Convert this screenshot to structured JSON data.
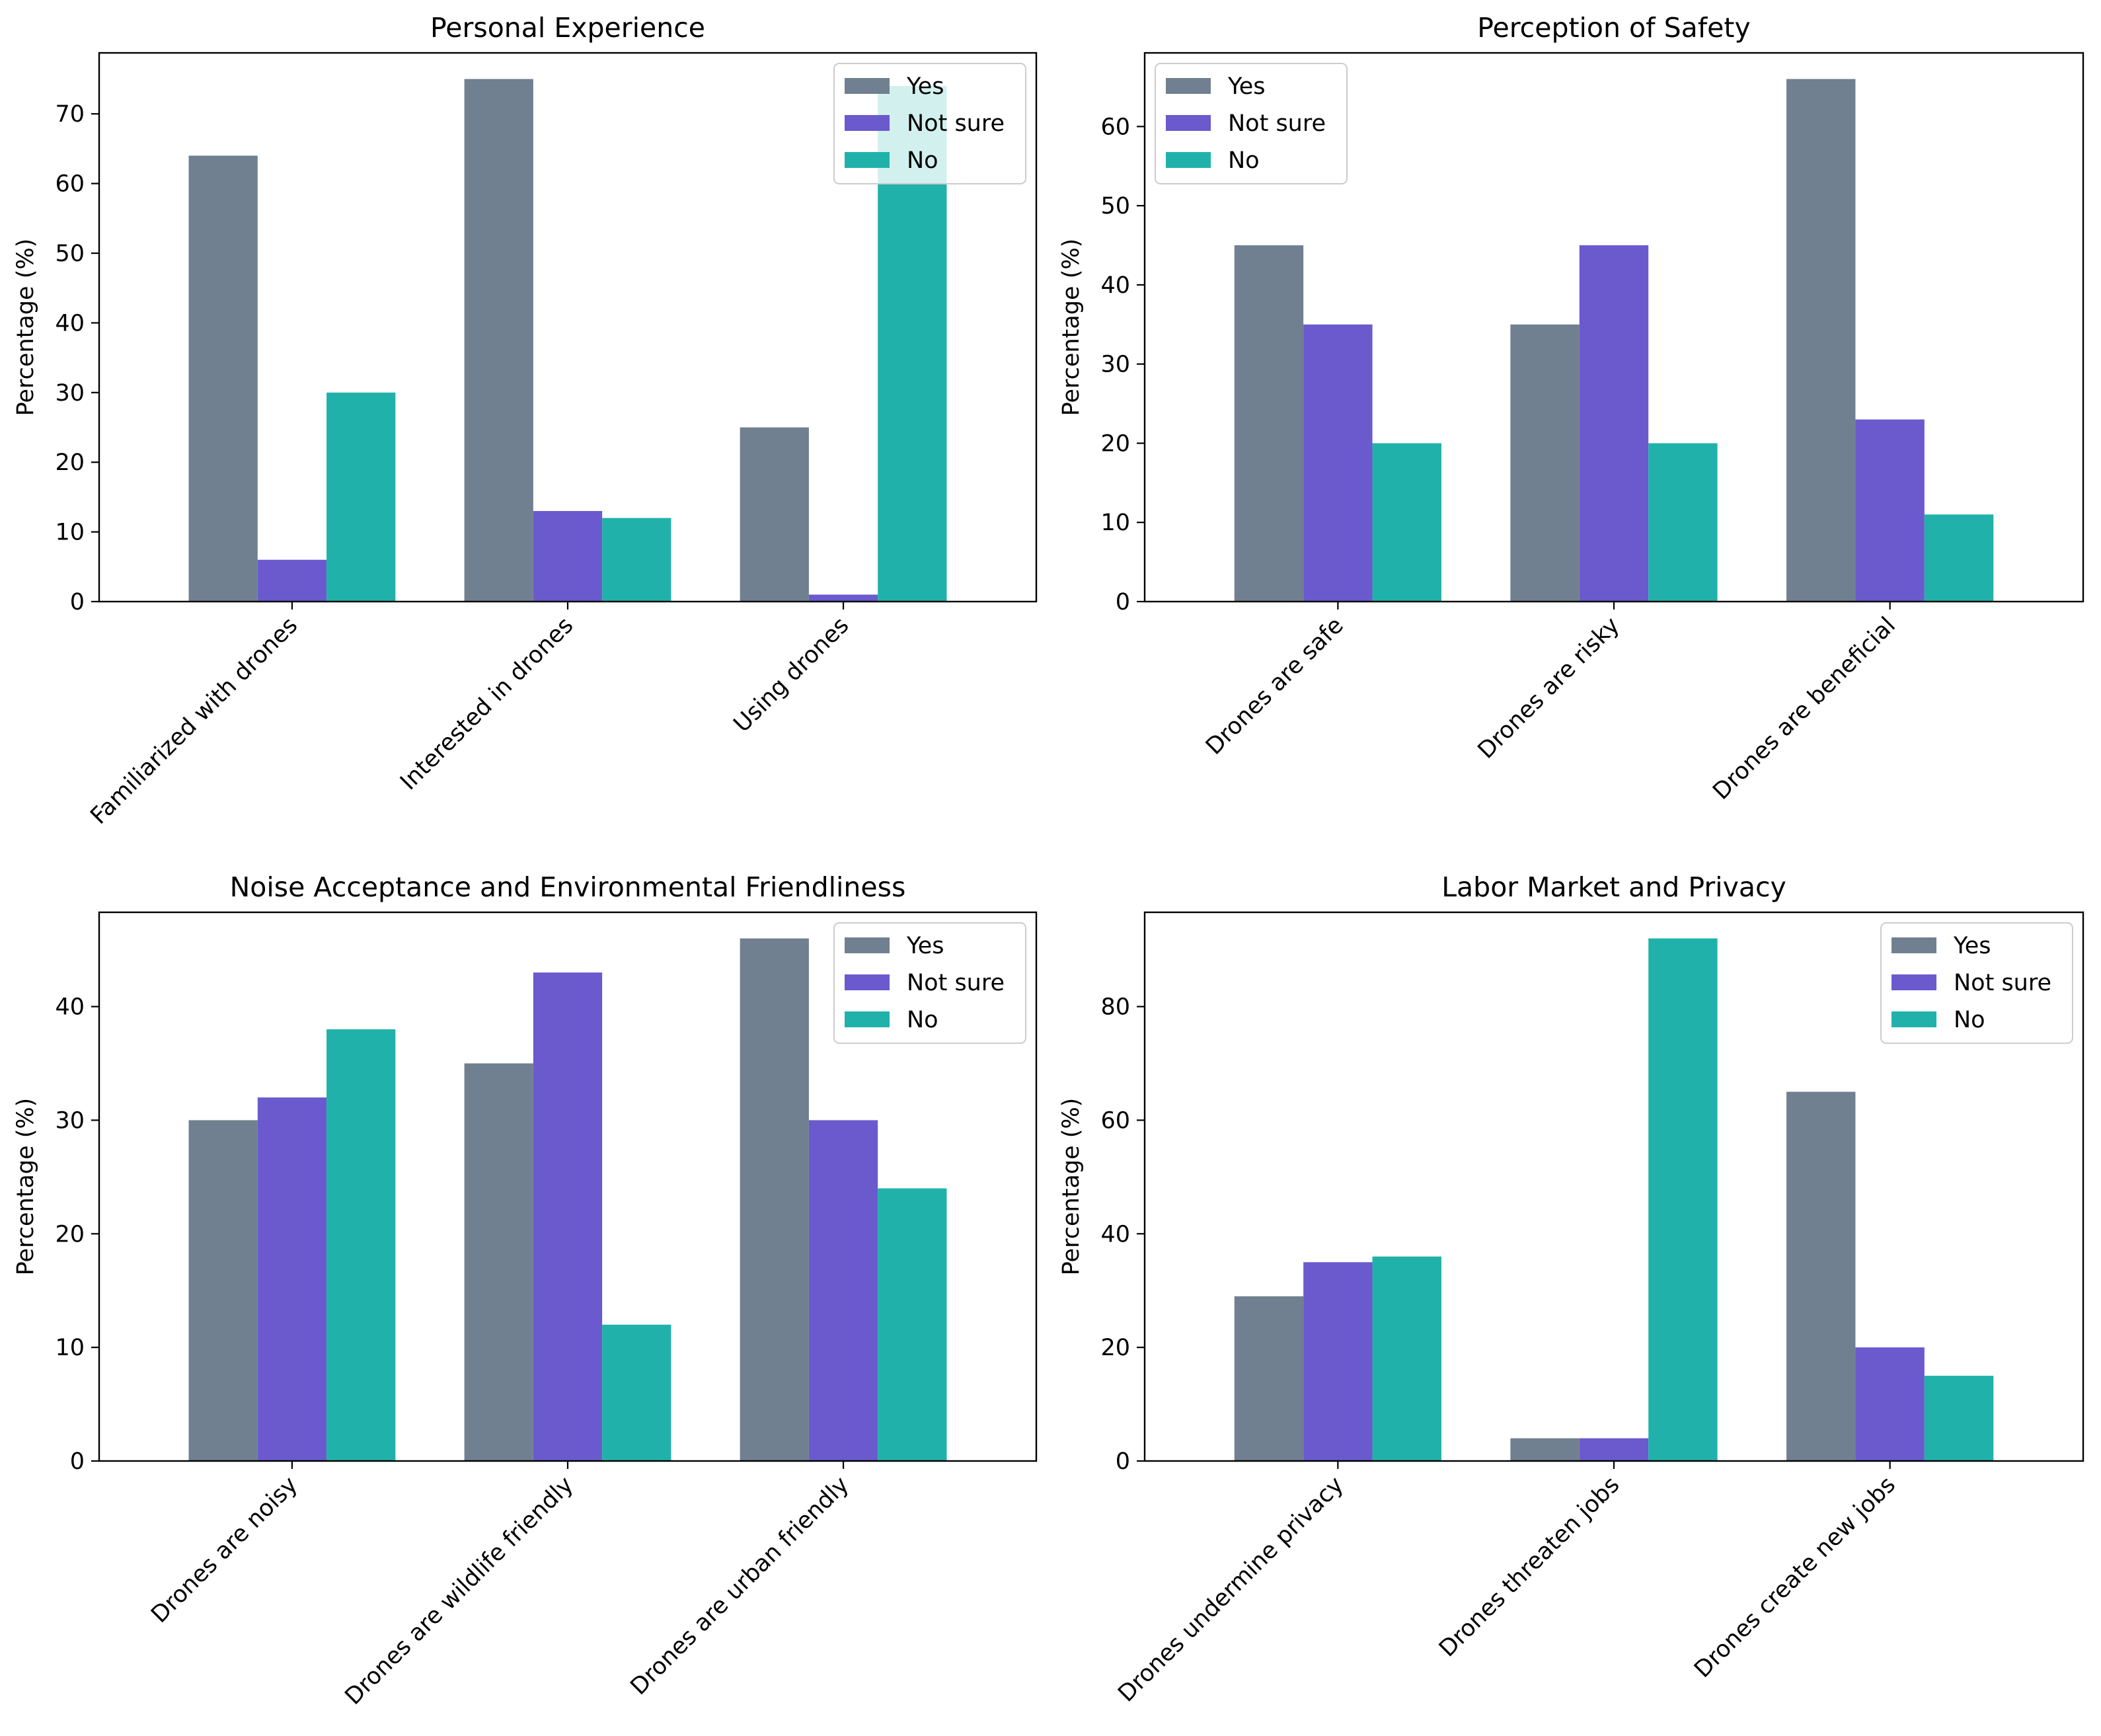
{
  "colors": {
    "Yes": "#708090",
    "Not sure": "#6a5acd",
    "No": "#20b2aa"
  },
  "chart_data": [
    {
      "type": "bar",
      "title": "Personal Experience",
      "xlabel": "",
      "ylabel": "Percentage (%)",
      "categories": [
        "Familiarized with drones",
        "Interested in drones",
        "Using drones"
      ],
      "series": [
        {
          "name": "Yes",
          "values": [
            64,
            75,
            25
          ]
        },
        {
          "name": "Not sure",
          "values": [
            6,
            13,
            1
          ]
        },
        {
          "name": "No",
          "values": [
            30,
            12,
            74
          ]
        }
      ],
      "ylim": [
        0,
        78.75
      ],
      "yticks": [
        0,
        10,
        20,
        30,
        40,
        50,
        60,
        70
      ],
      "legend": "top-right"
    },
    {
      "type": "bar",
      "title": "Perception of Safety",
      "xlabel": "",
      "ylabel": "Percentage (%)",
      "categories": [
        "Drones are safe",
        "Drones are risky",
        "Drones are beneficial"
      ],
      "series": [
        {
          "name": "Yes",
          "values": [
            45,
            35,
            66
          ]
        },
        {
          "name": "Not sure",
          "values": [
            35,
            45,
            23
          ]
        },
        {
          "name": "No",
          "values": [
            20,
            20,
            11
          ]
        }
      ],
      "ylim": [
        0,
        69.3
      ],
      "yticks": [
        0,
        10,
        20,
        30,
        40,
        50,
        60
      ],
      "legend": "top-left"
    },
    {
      "type": "bar",
      "title": "Noise Acceptance and Environmental Friendliness",
      "xlabel": "",
      "ylabel": "Percentage (%)",
      "categories": [
        "Drones are noisy",
        "Drones are wildlife friendly",
        "Drones are urban friendly"
      ],
      "series": [
        {
          "name": "Yes",
          "values": [
            30,
            35,
            46
          ]
        },
        {
          "name": "Not sure",
          "values": [
            32,
            43,
            30
          ]
        },
        {
          "name": "No",
          "values": [
            38,
            12,
            24
          ]
        }
      ],
      "ylim": [
        0,
        48.3
      ],
      "yticks": [
        0,
        10,
        20,
        30,
        40
      ],
      "legend": "top-right"
    },
    {
      "type": "bar",
      "title": "Labor Market and Privacy",
      "xlabel": "",
      "ylabel": "Percentage (%)",
      "categories": [
        "Drones undermine privacy",
        "Drones threaten jobs",
        "Drones create new jobs"
      ],
      "series": [
        {
          "name": "Yes",
          "values": [
            29,
            4,
            65
          ]
        },
        {
          "name": "Not sure",
          "values": [
            35,
            4,
            20
          ]
        },
        {
          "name": "No",
          "values": [
            36,
            92,
            15
          ]
        }
      ],
      "ylim": [
        0,
        96.6
      ],
      "yticks": [
        0,
        20,
        40,
        60,
        80
      ],
      "legend": "top-right"
    }
  ]
}
